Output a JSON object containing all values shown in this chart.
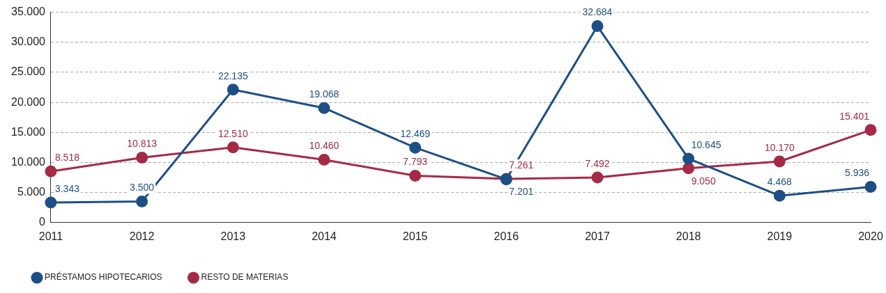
{
  "chart_data": {
    "type": "line",
    "categories": [
      "2011",
      "2012",
      "2013",
      "2014",
      "2015",
      "2016",
      "2017",
      "2018",
      "2019",
      "2020"
    ],
    "series": [
      {
        "name": "PRÉSTAMOS HIPOTECARIOS",
        "color": "#1d4f86",
        "values": [
          3343,
          3500,
          22135,
          19068,
          12469,
          7201,
          32684,
          10645,
          4468,
          5936
        ],
        "value_labels": [
          "3.343",
          "3.500",
          "22.135",
          "19.068",
          "12.469",
          "7.201",
          "32.684",
          "10.645",
          "4.468",
          "5.936"
        ]
      },
      {
        "name": "RESTO DE MATERIAS",
        "color": "#a52a45",
        "values": [
          8518,
          10813,
          12510,
          10460,
          7793,
          7261,
          7492,
          9050,
          10170,
          15401
        ],
        "value_labels": [
          "8.518",
          "10.813",
          "12.510",
          "10.460",
          "7.793",
          "7.261",
          "7.492",
          "9.050",
          "10.170",
          "15.401"
        ]
      }
    ],
    "ylim": [
      0,
      35000
    ],
    "yticks": [
      {
        "value": 0,
        "label": "0"
      },
      {
        "value": 5000,
        "label": "5.000"
      },
      {
        "value": 10000,
        "label": "10.000"
      },
      {
        "value": 15000,
        "label": "15.000"
      },
      {
        "value": 20000,
        "label": "20.000"
      },
      {
        "value": 25000,
        "label": "25.000"
      },
      {
        "value": 30000,
        "label": "30.000"
      },
      {
        "value": 35000,
        "label": "35.000"
      }
    ],
    "grid": "y",
    "legend": "bottom left",
    "marker": "circle",
    "line_style": "solid"
  }
}
